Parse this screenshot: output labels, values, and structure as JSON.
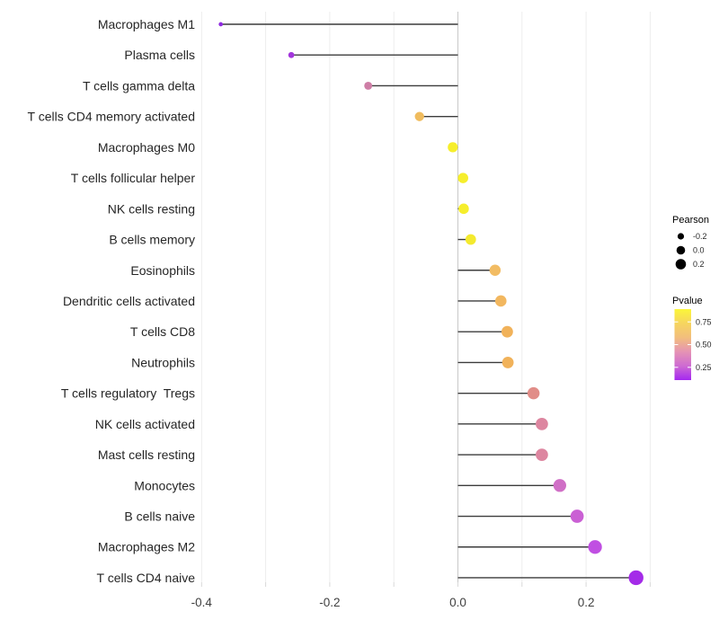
{
  "chart_data": {
    "type": "lollipop",
    "orientation": "horizontal",
    "title": "",
    "xlabel": "",
    "ylabel": "",
    "grid": true,
    "xlim": [
      -0.45,
      0.33
    ],
    "x_major_tick_labels": [
      "-0.4",
      "-0.2",
      "0.0",
      "0.2"
    ],
    "x_major_tick_values": [
      -0.4,
      -0.2,
      0.0,
      0.2
    ],
    "x_minor_tick_values": [
      -0.4,
      -0.3,
      -0.2,
      -0.1,
      0.0,
      0.1,
      0.2,
      0.3
    ],
    "points": [
      {
        "label": "Macrophages M1",
        "pearson": -0.37,
        "color": "#8F2BE0"
      },
      {
        "label": "Plasma cells",
        "pearson": -0.26,
        "color": "#A336DC"
      },
      {
        "label": "T cells gamma delta",
        "pearson": -0.14,
        "color": "#CE7EA6"
      },
      {
        "label": "T cells CD4 memory activated",
        "pearson": -0.06,
        "color": "#F0BC5E"
      },
      {
        "label": "Macrophages M0",
        "pearson": -0.008,
        "color": "#F6EE2C"
      },
      {
        "label": "T cells follicular helper",
        "pearson": 0.008,
        "color": "#F6EE2C"
      },
      {
        "label": "NK cells resting",
        "pearson": 0.009,
        "color": "#F6EE2C"
      },
      {
        "label": "B cells memory",
        "pearson": 0.02,
        "color": "#F4EA2E"
      },
      {
        "label": "Eosinophils",
        "pearson": 0.058,
        "color": "#F2BC63"
      },
      {
        "label": "Dendritic cells activated",
        "pearson": 0.067,
        "color": "#F2B75F"
      },
      {
        "label": "T cells CD8",
        "pearson": 0.077,
        "color": "#F1B25A"
      },
      {
        "label": "Neutrophils",
        "pearson": 0.078,
        "color": "#F1B25A"
      },
      {
        "label": "T cells regulatory  Tregs",
        "pearson": 0.118,
        "color": "#E18D88"
      },
      {
        "label": "NK cells activated",
        "pearson": 0.131,
        "color": "#DD86A0"
      },
      {
        "label": "Mast cells resting",
        "pearson": 0.131,
        "color": "#DD86A0"
      },
      {
        "label": "Monocytes",
        "pearson": 0.159,
        "color": "#D06FC6"
      },
      {
        "label": "B cells naive",
        "pearson": 0.186,
        "color": "#CA60D4"
      },
      {
        "label": "Macrophages M2",
        "pearson": 0.214,
        "color": "#C04FE2"
      },
      {
        "label": "T cells CD4 naive",
        "pearson": 0.278,
        "color": "#A42BE8"
      }
    ],
    "legend": {
      "position": "right",
      "size_legend": {
        "title": "Pearson",
        "entries": [
          {
            "label": "-0.2",
            "value": -0.2
          },
          {
            "label": "0.0",
            "value": 0.0
          },
          {
            "label": "0.2",
            "value": 0.2
          }
        ],
        "dot_color": "#000000"
      },
      "color_legend": {
        "title": "Pvalue",
        "tick_labels": [
          "0.75",
          "0.50",
          "0.25"
        ],
        "gradient_top_to_bottom": [
          "#FBF63A",
          "#F6D55F",
          "#F2BE7D",
          "#E593B4",
          "#CE6BD2",
          "#A428F0"
        ]
      }
    },
    "colors": {
      "stem": "#3C3C3C",
      "zero_line": "#C9C9C9",
      "gridline": "#EDEDED",
      "axis_tick": "#D9D9D9",
      "axis_text": "#404040",
      "category_text": "#262626"
    }
  }
}
